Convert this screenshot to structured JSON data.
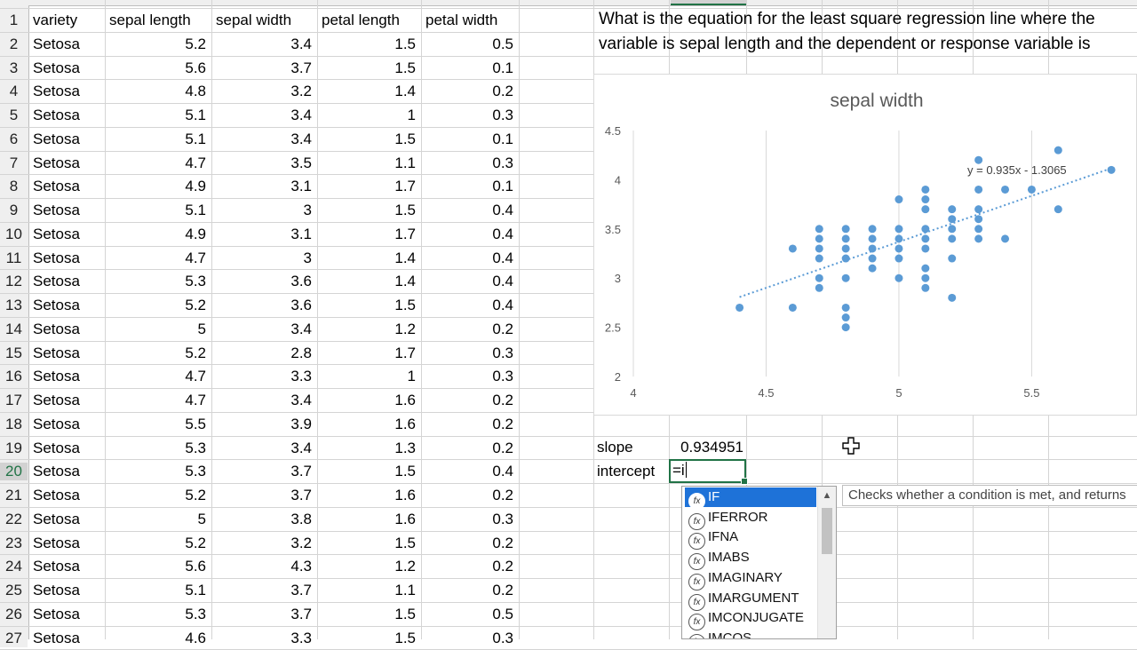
{
  "headers": [
    "variety",
    "sepal length",
    "sepal width",
    "petal length",
    "petal width"
  ],
  "row_numbers": [
    "1",
    "2",
    "3",
    "4",
    "5",
    "6",
    "7",
    "8",
    "9",
    "10",
    "11",
    "12",
    "13",
    "14",
    "15",
    "16",
    "17",
    "18",
    "19",
    "20",
    "21",
    "22",
    "23",
    "24",
    "25",
    "26",
    "27"
  ],
  "rows": [
    [
      "Setosa",
      "5.2",
      "3.4",
      "1.5",
      "0.5"
    ],
    [
      "Setosa",
      "5.6",
      "3.7",
      "1.5",
      "0.1"
    ],
    [
      "Setosa",
      "4.8",
      "3.2",
      "1.4",
      "0.2"
    ],
    [
      "Setosa",
      "5.1",
      "3.4",
      "1",
      "0.3"
    ],
    [
      "Setosa",
      "5.1",
      "3.4",
      "1.5",
      "0.1"
    ],
    [
      "Setosa",
      "4.7",
      "3.5",
      "1.1",
      "0.3"
    ],
    [
      "Setosa",
      "4.9",
      "3.1",
      "1.7",
      "0.1"
    ],
    [
      "Setosa",
      "5.1",
      "3",
      "1.5",
      "0.4"
    ],
    [
      "Setosa",
      "4.9",
      "3.1",
      "1.7",
      "0.4"
    ],
    [
      "Setosa",
      "4.7",
      "3",
      "1.4",
      "0.4"
    ],
    [
      "Setosa",
      "5.3",
      "3.6",
      "1.4",
      "0.4"
    ],
    [
      "Setosa",
      "5.2",
      "3.6",
      "1.5",
      "0.4"
    ],
    [
      "Setosa",
      "5",
      "3.4",
      "1.2",
      "0.2"
    ],
    [
      "Setosa",
      "5.2",
      "2.8",
      "1.7",
      "0.3"
    ],
    [
      "Setosa",
      "4.7",
      "3.3",
      "1",
      "0.3"
    ],
    [
      "Setosa",
      "4.7",
      "3.4",
      "1.6",
      "0.2"
    ],
    [
      "Setosa",
      "5.5",
      "3.9",
      "1.6",
      "0.2"
    ],
    [
      "Setosa",
      "5.3",
      "3.4",
      "1.3",
      "0.2"
    ],
    [
      "Setosa",
      "5.3",
      "3.7",
      "1.5",
      "0.4"
    ],
    [
      "Setosa",
      "5.2",
      "3.7",
      "1.6",
      "0.2"
    ],
    [
      "Setosa",
      "5",
      "3.8",
      "1.6",
      "0.3"
    ],
    [
      "Setosa",
      "5.2",
      "3.2",
      "1.5",
      "0.2"
    ],
    [
      "Setosa",
      "5.6",
      "4.3",
      "1.2",
      "0.2"
    ],
    [
      "Setosa",
      "5.1",
      "3.7",
      "1.1",
      "0.2"
    ],
    [
      "Setosa",
      "5.3",
      "3.7",
      "1.5",
      "0.5"
    ],
    [
      "Setosa",
      "4.6",
      "3.3",
      "1.5",
      "0.3"
    ]
  ],
  "question": {
    "line1": "What is the equation for the least square regression line where the",
    "line2": "variable is sepal length and the dependent or response variable is"
  },
  "labels": {
    "slope": "slope",
    "slope_value": "0.934951",
    "intercept": "intercept"
  },
  "active_cell": {
    "value": "=i"
  },
  "chart_data": {
    "type": "scatter",
    "title": "sepal width",
    "xlabel": "",
    "ylabel": "",
    "xlim": [
      4,
      5.9
    ],
    "ylim": [
      2,
      4.5
    ],
    "x_ticks": [
      "4",
      "4.5",
      "5",
      "5.5"
    ],
    "y_ticks": [
      "2",
      "2.5",
      "3",
      "3.5",
      "4",
      "4.5"
    ],
    "marker_color": "#5b9bd5",
    "trendline": {
      "slope": 0.935,
      "intercept": -1.3065,
      "label": "y = 0.935x - 1.3065",
      "style": "dotted",
      "x_range": [
        4.4,
        5.8
      ]
    },
    "grid": "vertical",
    "points": [
      [
        4.4,
        2.7
      ],
      [
        4.6,
        2.7
      ],
      [
        4.6,
        3.3
      ],
      [
        4.7,
        2.9
      ],
      [
        4.7,
        3.0
      ],
      [
        4.7,
        3.2
      ],
      [
        4.7,
        3.3
      ],
      [
        4.7,
        3.4
      ],
      [
        4.7,
        3.5
      ],
      [
        4.8,
        2.5
      ],
      [
        4.8,
        2.6
      ],
      [
        4.8,
        2.7
      ],
      [
        4.8,
        3.0
      ],
      [
        4.8,
        3.2
      ],
      [
        4.8,
        3.3
      ],
      [
        4.8,
        3.4
      ],
      [
        4.8,
        3.5
      ],
      [
        4.9,
        3.1
      ],
      [
        4.9,
        3.2
      ],
      [
        4.9,
        3.3
      ],
      [
        4.9,
        3.4
      ],
      [
        4.9,
        3.5
      ],
      [
        5.0,
        3.0
      ],
      [
        5.0,
        3.2
      ],
      [
        5.0,
        3.3
      ],
      [
        5.0,
        3.4
      ],
      [
        5.0,
        3.5
      ],
      [
        5.0,
        3.8
      ],
      [
        5.1,
        2.9
      ],
      [
        5.1,
        3.0
      ],
      [
        5.1,
        3.1
      ],
      [
        5.1,
        3.3
      ],
      [
        5.1,
        3.4
      ],
      [
        5.1,
        3.5
      ],
      [
        5.1,
        3.7
      ],
      [
        5.1,
        3.8
      ],
      [
        5.1,
        3.9
      ],
      [
        5.2,
        2.8
      ],
      [
        5.2,
        3.2
      ],
      [
        5.2,
        3.4
      ],
      [
        5.2,
        3.5
      ],
      [
        5.2,
        3.6
      ],
      [
        5.2,
        3.7
      ],
      [
        5.3,
        3.4
      ],
      [
        5.3,
        3.5
      ],
      [
        5.3,
        3.6
      ],
      [
        5.3,
        3.7
      ],
      [
        5.3,
        3.9
      ],
      [
        5.3,
        4.2
      ],
      [
        5.4,
        3.4
      ],
      [
        5.4,
        3.9
      ],
      [
        5.5,
        3.9
      ],
      [
        5.6,
        3.7
      ],
      [
        5.6,
        4.3
      ],
      [
        5.8,
        4.1
      ]
    ]
  },
  "autocomplete": {
    "items": [
      "IF",
      "IFERROR",
      "IFNA",
      "IMABS",
      "IMAGINARY",
      "IMARGUMENT",
      "IMCONJUGATE",
      "IMCOS"
    ],
    "selected_index": 0,
    "fx_glyph": "fx"
  },
  "tooltip": "Checks whether a condition is met, and returns"
}
